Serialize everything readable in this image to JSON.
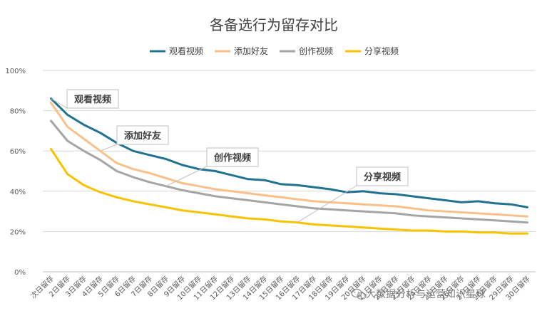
{
  "chart_data": {
    "type": "line",
    "title": "各备选行为留存对比",
    "xlabel": "",
    "ylabel": "",
    "ylim": [
      0,
      100
    ],
    "yticks": [
      "0%",
      "20%",
      "40%",
      "60%",
      "80%",
      "100%"
    ],
    "grid": true,
    "legend_position": "top",
    "categories": [
      "次日留存",
      "2日留存",
      "3日留存",
      "4日留存",
      "5日留存",
      "6日留存",
      "7日留存",
      "8日留存",
      "9日留存",
      "10日留存",
      "11日留存",
      "12日留存",
      "13日留存",
      "14日留存",
      "15日留存",
      "16日留存",
      "17日留存",
      "18日留存",
      "19日留存",
      "20日留存",
      "21日留存",
      "22日留存",
      "23日留存",
      "24日留存",
      "25日留存",
      "26日留存",
      "27日留存",
      "28日留存",
      "29日留存",
      "30日留存"
    ],
    "series": [
      {
        "name": "观看视频",
        "color": "#1f7391",
        "values": [
          86,
          78,
          73,
          69,
          64,
          60,
          58,
          56,
          53,
          51,
          50,
          48,
          46,
          45.5,
          43.5,
          43,
          42,
          41,
          39.5,
          40,
          39,
          38.5,
          37.5,
          36.5,
          35.5,
          34.5,
          35,
          34,
          33.5,
          32
        ]
      },
      {
        "name": "添加好友",
        "color": "#f9c08a",
        "values": [
          84,
          72,
          66,
          60,
          54,
          51,
          49,
          46.5,
          44,
          42.5,
          41,
          40,
          39,
          38,
          37,
          36,
          35,
          34.5,
          34,
          33.5,
          33,
          32.5,
          31.5,
          30.5,
          30,
          29.5,
          29,
          28.5,
          28,
          27.5
        ]
      },
      {
        "name": "创作视频",
        "color": "#a5a5a5",
        "values": [
          75,
          65,
          60,
          55.5,
          50,
          47,
          44.5,
          42.5,
          40.5,
          39,
          37.5,
          36.5,
          35.5,
          34.5,
          33.5,
          32.5,
          31.5,
          31,
          30.5,
          30,
          29.5,
          29,
          28,
          27.5,
          27,
          26.5,
          26,
          25.5,
          25,
          24.5
        ]
      },
      {
        "name": "分享视频",
        "color": "#f7c300",
        "values": [
          61,
          48.5,
          43,
          39.5,
          37,
          35,
          33.5,
          32,
          30.5,
          29.5,
          28.5,
          27.5,
          26.5,
          26,
          25,
          24.5,
          23.5,
          23,
          22.5,
          22,
          21.5,
          21,
          20.5,
          20.5,
          20,
          20,
          19.5,
          19.5,
          19,
          19
        ]
      }
    ],
    "annotations": [
      {
        "text": "观看视频",
        "series_index": 0,
        "point_index": 0
      },
      {
        "text": "添加好友",
        "series_index": 1,
        "point_index": 3
      },
      {
        "text": "创作视频",
        "series_index": 2,
        "point_index": 7
      },
      {
        "text": "分享视频",
        "series_index": 3,
        "point_index": 15
      }
    ]
  },
  "watermark": {
    "icon": "wechat-icon",
    "text": "大数据分析与运营知识星球"
  }
}
